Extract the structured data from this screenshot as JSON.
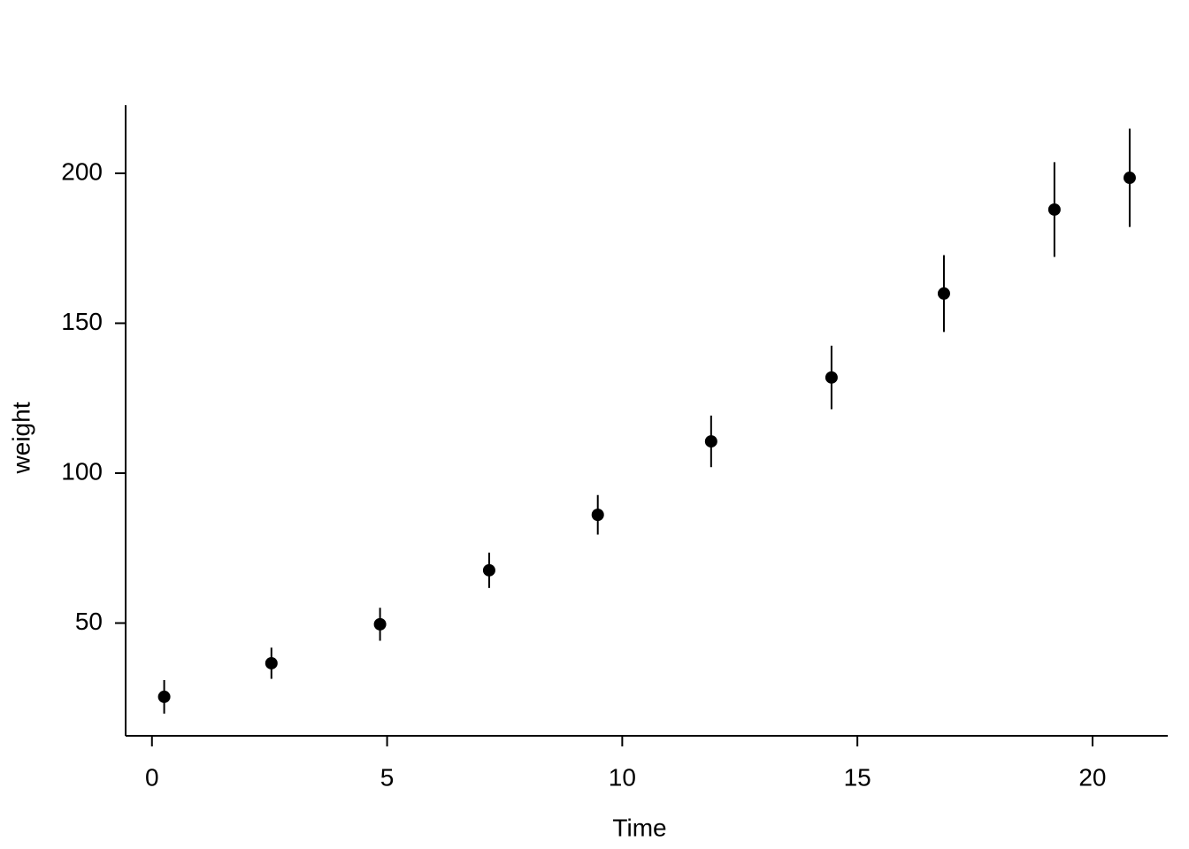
{
  "chart_data": {
    "type": "errorbar",
    "x_label": "Time",
    "y_label": "weight",
    "x": [
      0.26,
      2.54,
      4.85,
      7.17,
      9.48,
      11.89,
      14.45,
      16.84,
      19.19,
      20.79
    ],
    "values": [
      25.4,
      36.6,
      49.6,
      67.6,
      86.1,
      110.6,
      131.9,
      159.9,
      187.9,
      198.5
    ],
    "errors": [
      5.6,
      5.2,
      5.5,
      5.9,
      6.6,
      8.6,
      10.6,
      12.8,
      15.8,
      16.4
    ],
    "color": "#000000",
    "xlim": [
      -0.56,
      21.6
    ],
    "xticks": [
      0,
      5,
      10,
      15,
      20
    ],
    "ylim": [
      12.4,
      222.7
    ],
    "yticks": [
      50,
      100,
      150,
      200
    ],
    "grid": false
  }
}
